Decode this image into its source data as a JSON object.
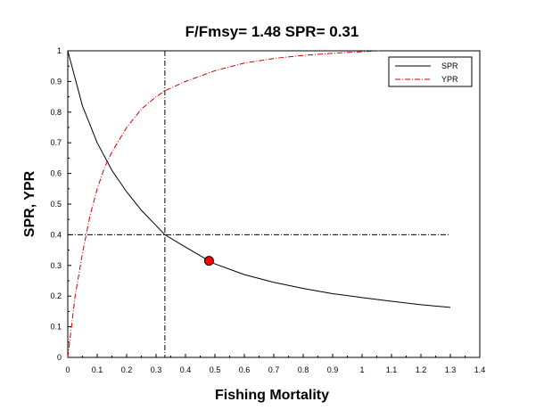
{
  "chart_data": {
    "type": "line",
    "title": "F/Fmsy=  1.48  SPR=  0.31",
    "xlabel": "Fishing Mortality",
    "ylabel": "SPR, YPR",
    "xlim": [
      0,
      1.4
    ],
    "ylim": [
      0,
      1
    ],
    "xticks": [
      "0",
      "0.1",
      "0.2",
      "0.3",
      "0.4",
      "0.5",
      "0.6",
      "0.7",
      "0.8",
      "0.9",
      "1",
      "1.1",
      "1.2",
      "1.3",
      "1.4"
    ],
    "yticks": [
      "0",
      "0.1",
      "0.2",
      "0.3",
      "0.4",
      "0.5",
      "0.6",
      "0.7",
      "0.8",
      "0.9",
      "1"
    ],
    "grid": false,
    "legend_position": "top-right",
    "series": [
      {
        "name": "SPR",
        "color": "#000000",
        "style": "solid",
        "x": [
          0,
          0.05,
          0.1,
          0.15,
          0.2,
          0.25,
          0.3,
          0.33,
          0.4,
          0.48,
          0.5,
          0.6,
          0.7,
          0.8,
          0.9,
          1.0,
          1.1,
          1.2,
          1.3
        ],
        "y": [
          1.0,
          0.82,
          0.7,
          0.61,
          0.54,
          0.48,
          0.43,
          0.4,
          0.36,
          0.315,
          0.305,
          0.27,
          0.245,
          0.225,
          0.208,
          0.195,
          0.183,
          0.172,
          0.163
        ]
      },
      {
        "name": "YPR",
        "color": "#cc0000",
        "style": "dash-dot",
        "x": [
          0,
          0.025,
          0.05,
          0.075,
          0.1,
          0.125,
          0.15,
          0.2,
          0.25,
          0.3,
          0.33,
          0.4,
          0.5,
          0.6,
          0.7,
          0.8,
          0.9,
          1.0,
          1.06
        ],
        "y": [
          0.0,
          0.2,
          0.34,
          0.46,
          0.55,
          0.62,
          0.67,
          0.75,
          0.81,
          0.85,
          0.87,
          0.9,
          0.935,
          0.96,
          0.975,
          0.985,
          0.992,
          0.997,
          1.0
        ]
      }
    ],
    "reference_lines": {
      "vertical_x": 0.33,
      "horizontal_y": 0.4
    },
    "marker_point": {
      "x": 0.48,
      "y": 0.315,
      "color": "#ff0000"
    }
  }
}
